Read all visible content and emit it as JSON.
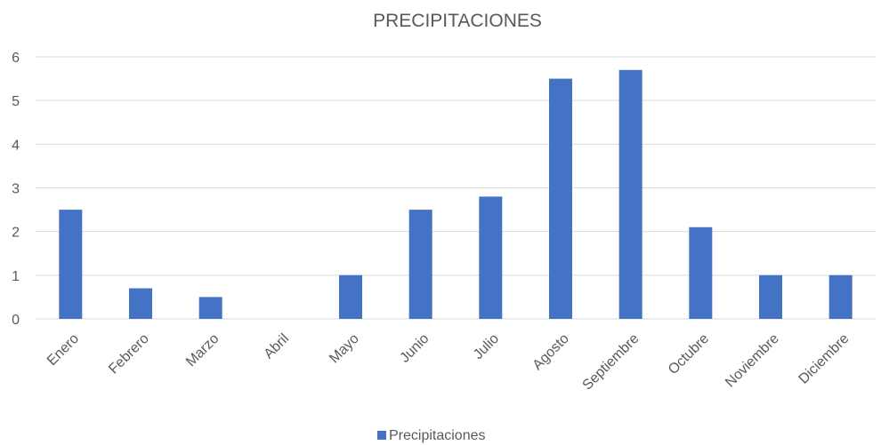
{
  "chart_data": {
    "type": "bar",
    "title": "PRECIPITACIONES",
    "xlabel": "",
    "ylabel": "",
    "categories": [
      "Enero",
      "Febrero",
      "Marzo",
      "Abril",
      "Mayo",
      "Junio",
      "Julio",
      "Agosto",
      "Septiembre",
      "Octubre",
      "Noviembre",
      "Diciembre"
    ],
    "series": [
      {
        "name": "Precipitaciones",
        "values": [
          2.5,
          0.7,
          0.5,
          0,
          1,
          2.5,
          2.8,
          5.5,
          5.7,
          2.1,
          1,
          1
        ]
      }
    ],
    "ylim": [
      0,
      6
    ],
    "yticks": [
      0,
      1,
      2,
      3,
      4,
      5,
      6
    ],
    "grid": true,
    "legend_position": "bottom",
    "colors": {
      "bar": "#4472C4",
      "grid": "#D9D9D9",
      "text": "#595959"
    }
  }
}
